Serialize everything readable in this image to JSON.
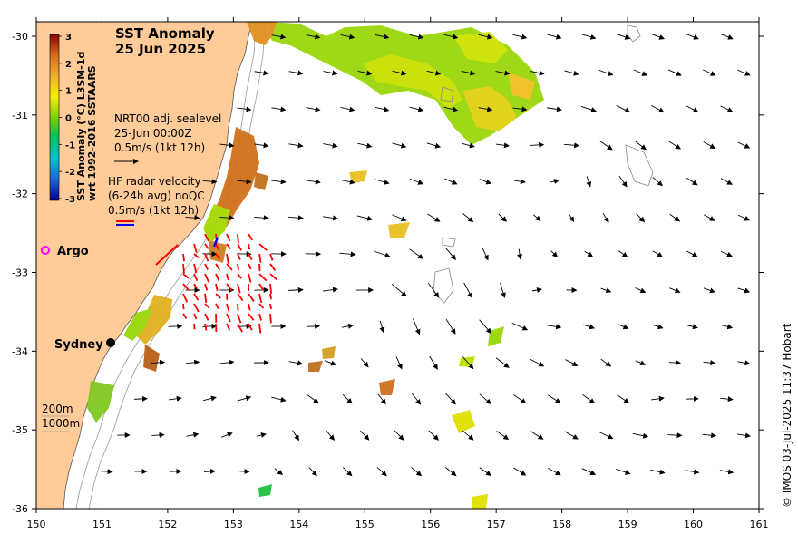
{
  "title": {
    "line1": "SST Anomaly",
    "line2": "25 Jun 2025"
  },
  "colorbar": {
    "label_line1": "SST Anomaly (°C) L3SM-1d",
    "label_line2": "wrt 1992-2016 SSTAARS",
    "ticks": [
      "3",
      "2",
      "1",
      "0",
      "-1",
      "-2",
      "-3"
    ]
  },
  "legend_sealevel": {
    "line1": "NRT00 adj. sealevel",
    "line2": "25-Jun 00:00Z",
    "line3": "0.5m/s (1kt 12h)"
  },
  "legend_hfradar": {
    "line1": "HF radar velocity",
    "line2": "(6-24h avg) noQC",
    "line3": "0.5m/s (1kt 12h)"
  },
  "places": {
    "argo": "Argo",
    "sydney": "Sydney"
  },
  "isobaths": {
    "a": "200m",
    "b": "1000m"
  },
  "axes": {
    "x_ticks": [
      "150",
      "151",
      "152",
      "153",
      "154",
      "155",
      "156",
      "157",
      "158",
      "159",
      "160",
      "161"
    ],
    "y_ticks": [
      "-30",
      "-31",
      "-32",
      "-33",
      "-34",
      "-35",
      "-36"
    ]
  },
  "credit": "© IMOS 03-Jul-2025 11:37 Hobart",
  "colors": {
    "land": "#ffcc99",
    "ocean": "#ffffff",
    "hf_radar": "#ff0000",
    "argo_marker": "#ff00ff"
  }
}
